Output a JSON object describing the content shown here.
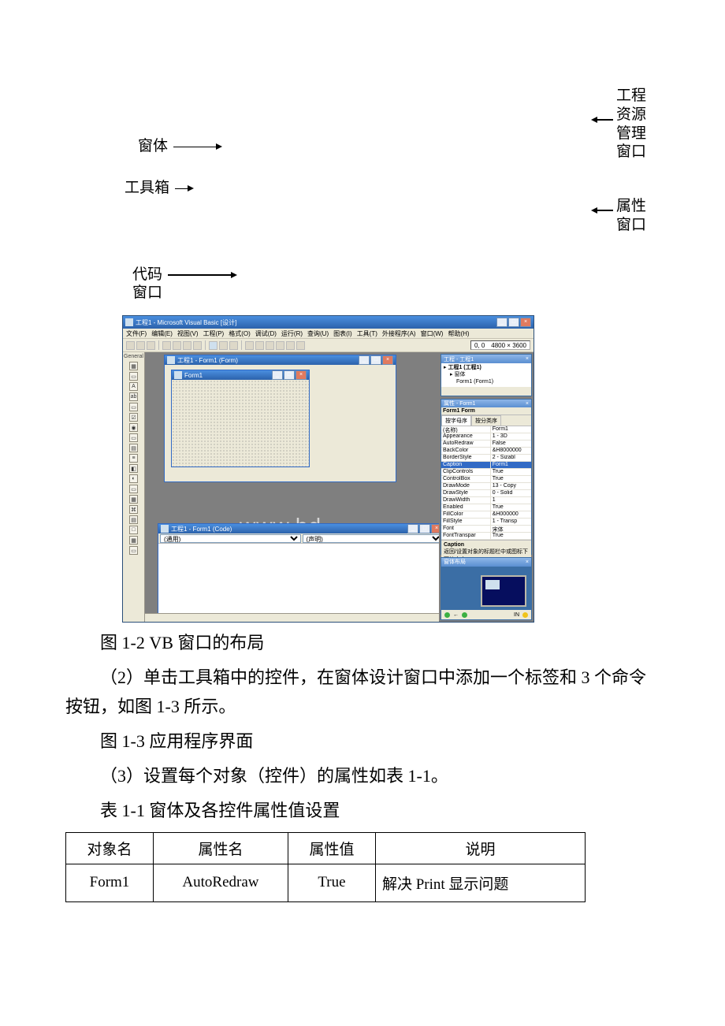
{
  "diagram_labels": {
    "form": "窗体",
    "toolbox": "工具箱",
    "code_window": "代码\n窗口",
    "project_explorer": "工程\n资源\n管理\n窗口",
    "properties_window": "属性\n窗口"
  },
  "vb": {
    "app_title": "工程1 - Microsoft Visual Basic [设计]",
    "menus": [
      "文件(F)",
      "编辑(E)",
      "视图(V)",
      "工程(P)",
      "格式(O)",
      "调试(D)",
      "运行(R)",
      "查询(U)",
      "图表(I)",
      "工具(T)",
      "外接程序(A)",
      "窗口(W)",
      "帮助(H)"
    ],
    "coords_pos": "0, 0",
    "coords_size": "4800 × 3600",
    "toolbox_title": "General",
    "toolbox_glyphs": [
      "▦",
      "▭",
      "A",
      "ab",
      "▭",
      "☑",
      "◉",
      "▭",
      "▤",
      "≡",
      "◧",
      "◐",
      "▭",
      "▦",
      "⌘",
      "▤",
      "□",
      "▦",
      "▭"
    ],
    "form_designer_title": "工程1 - Form1 (Form)",
    "form_inner_title": "Form1",
    "code_title": "工程1 - Form1 (Code)",
    "code_left": "(通用)",
    "code_right": "(声明)",
    "watermark": "www.bd",
    "project_panel_title": "工程 - 工程1",
    "project_tree": {
      "root": "工程1 (工程1)",
      "folder": "窗体",
      "item": "Form1 (Form1)"
    },
    "properties_panel_title": "属性 - Form1",
    "properties_object": "Form1 Form",
    "properties_tabs": [
      "按字母序",
      "按分类序"
    ],
    "properties_rows": [
      {
        "k": "(名称)",
        "v": "Form1",
        "sel": false
      },
      {
        "k": "Appearance",
        "v": "1 - 3D",
        "sel": false
      },
      {
        "k": "AutoRedraw",
        "v": "False",
        "sel": false
      },
      {
        "k": "BackColor",
        "v": "&H8000000",
        "sel": false
      },
      {
        "k": "BorderStyle",
        "v": "2 - Sizabl",
        "sel": false
      },
      {
        "k": "Caption",
        "v": "Form1",
        "sel": true
      },
      {
        "k": "ClipControls",
        "v": "True",
        "sel": false
      },
      {
        "k": "ControlBox",
        "v": "True",
        "sel": false
      },
      {
        "k": "DrawMode",
        "v": "13 - Copy",
        "sel": false
      },
      {
        "k": "DrawStyle",
        "v": "0 - Solid",
        "sel": false
      },
      {
        "k": "DrawWidth",
        "v": "1",
        "sel": false
      },
      {
        "k": "Enabled",
        "v": "True",
        "sel": false
      },
      {
        "k": "FillColor",
        "v": "&H000000",
        "sel": false
      },
      {
        "k": "FillStyle",
        "v": "1 - Transp",
        "sel": false
      },
      {
        "k": "Font",
        "v": "宋体",
        "sel": false
      },
      {
        "k": "FontTranspar",
        "v": "True",
        "sel": false
      }
    ],
    "properties_desc_title": "Caption",
    "properties_desc_body": "返回/设置对象的标题栏中或图标下面的文字。",
    "layout_panel_title": "窗体布局",
    "status_dots": [
      "#3cb043",
      "#3cb043",
      "#f0c419"
    ]
  },
  "captions": {
    "fig12": "图 1-2 VB 窗口的布局",
    "step2": "（2）单击工具箱中的控件，在窗体设计窗口中添加一个标签和 3 个命令按钮，如图 1-3 所示。",
    "fig13": "图 1-3 应用程序界面",
    "step3": "（3）设置每个对象（控件）的属性如表 1-1。",
    "tab11": "表 1-1 窗体及各控件属性值设置"
  },
  "table": {
    "headers": [
      "对象名",
      "属性名",
      "属性值",
      "说明"
    ],
    "rows": [
      [
        "Form1",
        "AutoRedraw",
        "True",
        "解决 Print 显示问题"
      ]
    ]
  },
  "colors": {
    "vb_outer": "#3b6ea5",
    "xp_beige": "#ece9d8",
    "titlebar_grad_top": "#4a8fe0",
    "titlebar_grad_bot": "#2c62ab",
    "highlight": "#316ac5"
  }
}
